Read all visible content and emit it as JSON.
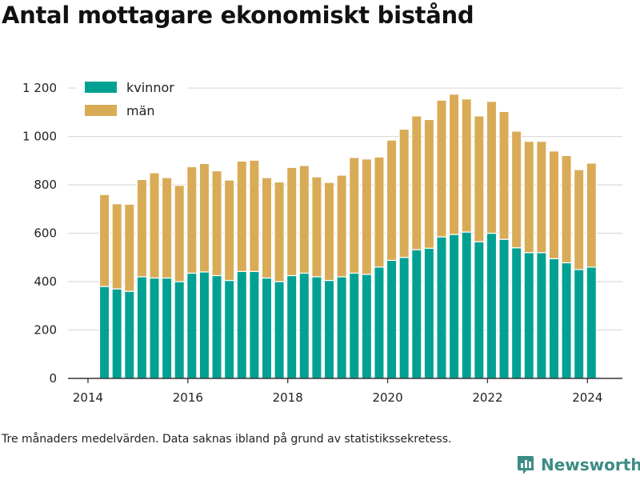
{
  "title": "Antal mottagare ekonomiskt bistånd",
  "note": "Tre månaders medelvärden. Data saknas ibland på grund av statistikssekretess.",
  "brand": {
    "name": "Newsworthy",
    "icon": "bar-chart-logo-icon",
    "color": "#3b8c84"
  },
  "chart_data": {
    "type": "bar",
    "stacked": true,
    "x_axis": {
      "min": 2013.6,
      "max": 2024.7,
      "ticks": [
        2014,
        2016,
        2018,
        2020,
        2022,
        2024
      ],
      "tick_labels": [
        "2014",
        "2016",
        "2018",
        "2020",
        "2022",
        "2024"
      ]
    },
    "y_axis": {
      "min": 0,
      "max": 1250,
      "ticks": [
        0,
        200,
        400,
        600,
        800,
        1000,
        1200
      ],
      "tick_labels": [
        "0",
        "200",
        "400",
        "600",
        "800",
        "1 000",
        "1 200"
      ]
    },
    "grid": "horizontal",
    "legend_position": "top-left",
    "x": [
      2014.33,
      2014.58,
      2014.83,
      2015.08,
      2015.33,
      2015.58,
      2015.83,
      2016.08,
      2016.33,
      2016.58,
      2016.83,
      2017.08,
      2017.33,
      2017.58,
      2017.83,
      2018.08,
      2018.33,
      2018.58,
      2018.83,
      2019.08,
      2019.33,
      2019.58,
      2019.83,
      2020.08,
      2020.33,
      2020.58,
      2020.83,
      2021.08,
      2021.33,
      2021.58,
      2021.83,
      2022.08,
      2022.33,
      2022.58,
      2022.83,
      2023.08,
      2023.33,
      2023.58,
      2023.83,
      2024.08
    ],
    "series": [
      {
        "name": "kvinnor",
        "color": "#00a193",
        "values": [
          380,
          370,
          360,
          420,
          415,
          415,
          400,
          435,
          440,
          425,
          405,
          442,
          442,
          415,
          400,
          425,
          435,
          420,
          405,
          420,
          435,
          430,
          460,
          488,
          500,
          532,
          538,
          585,
          595,
          605,
          565,
          600,
          575,
          540,
          520,
          520,
          495,
          478,
          450,
          460
        ]
      },
      {
        "name": "män",
        "color": "#d9ab57",
        "values": [
          380,
          352,
          360,
          402,
          435,
          415,
          398,
          440,
          448,
          433,
          415,
          456,
          460,
          415,
          412,
          447,
          445,
          413,
          405,
          420,
          478,
          477,
          455,
          497,
          530,
          553,
          532,
          565,
          580,
          550,
          520,
          545,
          528,
          482,
          460,
          460,
          445,
          443,
          413,
          430
        ]
      }
    ]
  }
}
